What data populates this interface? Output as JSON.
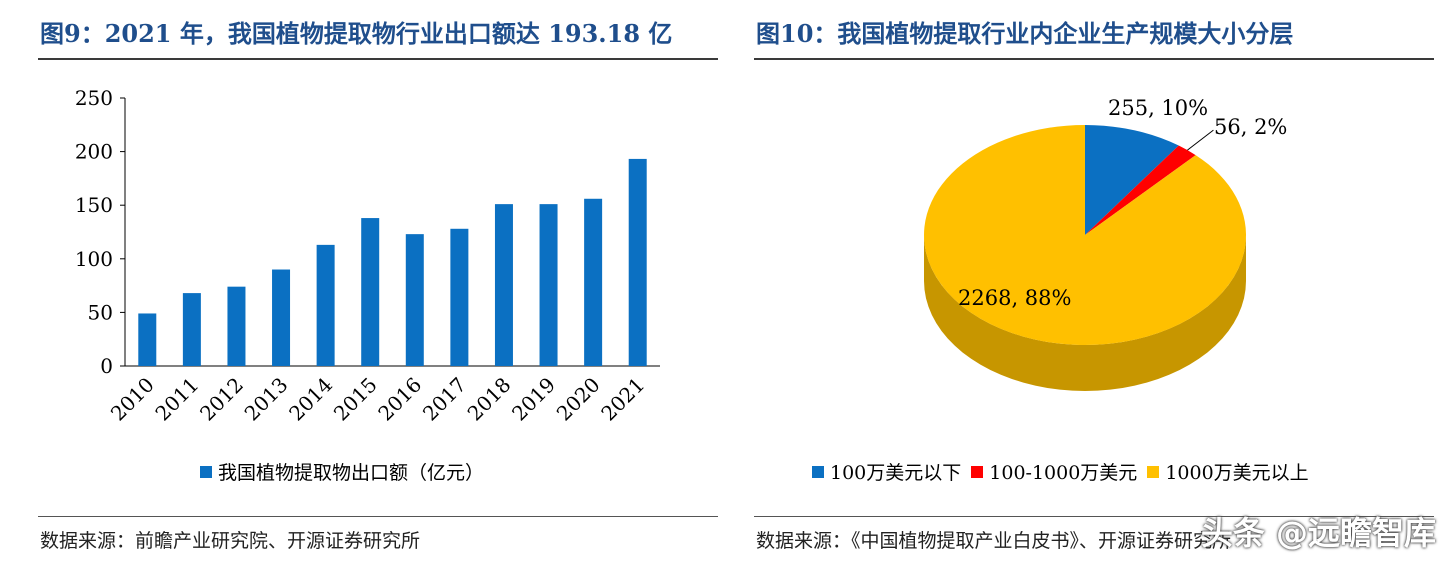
{
  "left_panel": {
    "title": "图9：2021 年，我国植物提取物行业出口额达 193.18 亿",
    "source": "数据来源：前瞻产业研究院、开源证券研究所"
  },
  "right_panel": {
    "title": "图10：我国植物提取行业内企业生产规模大小分层",
    "source": "数据来源：《中国植物提取产业白皮书》、开源证券研究所"
  },
  "watermark": "头条 @远瞻智库",
  "chart_data": [
    {
      "type": "bar",
      "categories": [
        "2010",
        "2011",
        "2012",
        "2013",
        "2014",
        "2015",
        "2016",
        "2017",
        "2018",
        "2019",
        "2020",
        "2021"
      ],
      "series": [
        {
          "name": "我国植物提取物出口额（亿元）",
          "values": [
            49,
            68,
            74,
            90,
            113,
            138,
            123,
            128,
            151,
            151,
            156,
            193.18
          ],
          "color": "#0b70c2"
        }
      ],
      "ylim": [
        0,
        250
      ],
      "yticks": [
        0,
        50,
        100,
        150,
        200,
        250
      ],
      "grid": false,
      "legend": "bottom"
    },
    {
      "type": "pie",
      "style": "3d",
      "slices": [
        {
          "name": "100万美元以下",
          "value": 255,
          "label": "255, 10%",
          "color": "#0b70c2"
        },
        {
          "name": "100-1000万美元",
          "value": 56,
          "label": "56, 2%",
          "color": "#ff0000"
        },
        {
          "name": "1000万美元以上",
          "value": 2268,
          "label": "2268, 88%",
          "color": "#ffc000"
        }
      ],
      "legend": "bottom"
    }
  ]
}
